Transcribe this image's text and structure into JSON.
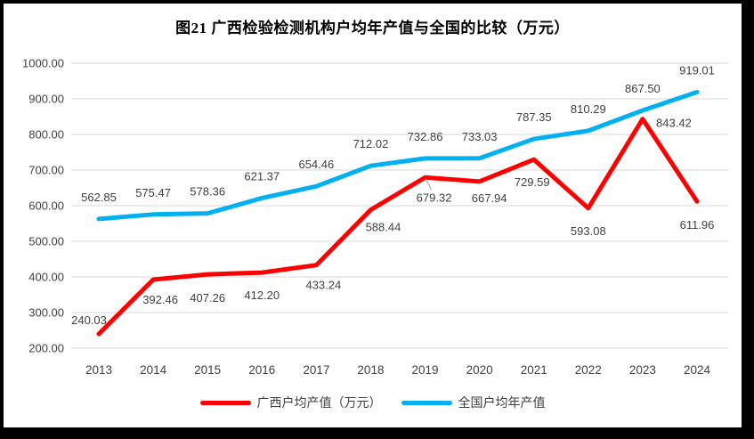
{
  "frame": {
    "border_color": "#000000",
    "background": "#ffffff"
  },
  "chart_data": {
    "type": "line",
    "title": "图21 广西检验检测机构户均年产值与全国的比较（万元）",
    "categories": [
      "2013",
      "2014",
      "2015",
      "2016",
      "2017",
      "2018",
      "2019",
      "2020",
      "2021",
      "2022",
      "2023",
      "2024"
    ],
    "series": [
      {
        "name": "广西户均产值（万元）",
        "color": "#ff0000",
        "values": [
          240.03,
          392.46,
          407.26,
          412.2,
          433.24,
          588.44,
          679.32,
          667.94,
          729.59,
          593.08,
          843.42,
          611.96
        ],
        "labels": [
          "240.03",
          "392.46",
          "407.26",
          "412.20",
          "433.24",
          "588.44",
          "679.32",
          "667.94",
          "729.59",
          "593.08",
          "843.42",
          "611.96"
        ]
      },
      {
        "name": "全国户均年产值",
        "color": "#00b0f0",
        "values": [
          562.85,
          575.47,
          578.36,
          621.37,
          654.46,
          712.02,
          732.86,
          733.03,
          787.35,
          810.29,
          867.5,
          919.01
        ],
        "labels": [
          "562.85",
          "575.47",
          "578.36",
          "621.37",
          "654.46",
          "712.02",
          "732.86",
          "733.03",
          "787.35",
          "810.29",
          "867.50",
          "919.01"
        ]
      }
    ],
    "xlabel": "",
    "ylabel": "",
    "ylim": [
      200,
      1000
    ],
    "ytick_step": 100,
    "ytick_labels": [
      "200.00",
      "300.00",
      "400.00",
      "500.00",
      "600.00",
      "700.00",
      "800.00",
      "900.00",
      "1000.00"
    ],
    "grid": "horizontal",
    "gridline_color": "#d9d9d9",
    "axis_label_color": "#404040",
    "data_label_color": "#3f3f3f",
    "leader_line_color": "#a6a6a6",
    "legend_position": "bottom"
  }
}
